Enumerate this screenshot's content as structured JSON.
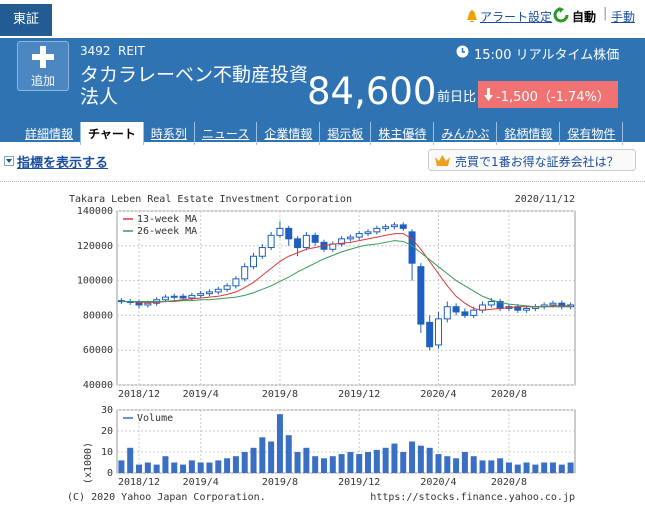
{
  "header": {
    "market": "東証",
    "alert": "アラート設定",
    "auto": "自動",
    "manual": "手動",
    "add": "追加",
    "code": "3492",
    "market_type": "REIT",
    "time": "15:00 リアルタイム株価",
    "name": "タカラレーベン不動産投資法人",
    "price": "84,600",
    "change_label": "前日比",
    "change": "-1,500（-1.74%）"
  },
  "tabs": [
    "詳細情報",
    "チャート",
    "時系列",
    "ニュース",
    "企業情報",
    "掲示板",
    "株主優待",
    "みんかぶ",
    "銘柄情報",
    "保有物件"
  ],
  "indicator_link": "指標を表示する",
  "broker_link": "売買で1番お得な証券会社は？",
  "chart_data": [
    {
      "type": "candlestick",
      "title": "Takara Leben Real Estate Investment Corporation",
      "date": "2020/11/12",
      "categories": [
        null,
        null,
        "2018/12",
        null,
        null,
        null,
        null,
        null,
        null,
        "2019/4",
        null,
        null,
        null,
        null,
        null,
        null,
        null,
        null,
        "2019/8",
        null,
        null,
        null,
        null,
        null,
        null,
        null,
        null,
        "2019/12",
        null,
        null,
        null,
        null,
        null,
        null,
        null,
        null,
        "2020/4",
        null,
        null,
        null,
        null,
        null,
        null,
        null,
        "2020/8",
        null,
        null,
        null,
        null,
        null,
        null,
        null
      ],
      "open": [
        88500,
        88000,
        87500,
        86000,
        87000,
        89000,
        90500,
        91000,
        90000,
        91500,
        92500,
        93500,
        95000,
        97000,
        101000,
        108000,
        114000,
        119000,
        126000,
        130000,
        124000,
        119000,
        126000,
        122000,
        118000,
        121000,
        124000,
        125000,
        127000,
        128000,
        130000,
        131000,
        132000,
        128000,
        108000,
        76000,
        63000,
        78000,
        85000,
        82000,
        80000,
        83000,
        86000,
        88000,
        84000,
        85000,
        83000,
        84000,
        85000,
        86000,
        87000,
        85000
      ],
      "high": [
        90000,
        89500,
        89000,
        88500,
        90500,
        92000,
        92500,
        92500,
        93000,
        94000,
        95000,
        96500,
        98500,
        102500,
        110000,
        116000,
        121000,
        128000,
        134000,
        131500,
        125500,
        128000,
        127500,
        123500,
        122500,
        125500,
        126500,
        128500,
        129500,
        131500,
        132500,
        133500,
        133500,
        129500,
        110000,
        80000,
        82000,
        88000,
        87000,
        84000,
        85000,
        88000,
        90000,
        89500,
        86500,
        86500,
        85500,
        86500,
        87500,
        88500,
        88500,
        87500
      ],
      "low": [
        86500,
        86000,
        84000,
        84500,
        85500,
        87500,
        89000,
        88500,
        88500,
        90000,
        91000,
        92000,
        93500,
        95500,
        99500,
        106500,
        112500,
        117500,
        124500,
        120000,
        114000,
        117500,
        120000,
        116500,
        116500,
        119500,
        122500,
        123500,
        125500,
        126500,
        128500,
        129500,
        128500,
        100000,
        70000,
        60000,
        61000,
        76000,
        80000,
        78500,
        78500,
        81500,
        84500,
        82500,
        82500,
        81500,
        81500,
        82500,
        83500,
        84500,
        83500,
        83500
      ],
      "close": [
        88000,
        87500,
        86000,
        87000,
        89000,
        90500,
        91000,
        90000,
        91500,
        92500,
        93500,
        95000,
        97000,
        101000,
        108000,
        114000,
        119000,
        126000,
        130000,
        124000,
        119000,
        126000,
        122000,
        118000,
        121000,
        124000,
        125000,
        127000,
        128000,
        130000,
        131000,
        132000,
        130000,
        110000,
        75000,
        62000,
        78000,
        85000,
        82000,
        80000,
        83000,
        86000,
        88000,
        84000,
        85000,
        83000,
        84000,
        85000,
        86000,
        87000,
        85000,
        86000
      ],
      "up_color": "#ffffff",
      "down_color": "#1f5fc0",
      "series": [
        {
          "name": "13-week MA",
          "color": "#d83a3a",
          "values": [
            88000,
            88000,
            87500,
            87500,
            87500,
            88000,
            88500,
            89000,
            89500,
            90000,
            90500,
            91000,
            92000,
            93500,
            96000,
            99000,
            103000,
            107000,
            111000,
            114000,
            116000,
            118000,
            119000,
            120000,
            121000,
            121500,
            122000,
            123000,
            124000,
            125000,
            126000,
            127000,
            127000,
            124000,
            118000,
            111000,
            104000,
            97000,
            91000,
            87000,
            84000,
            83000,
            83500,
            84000,
            84500,
            85000,
            85000,
            85000,
            85000,
            85500,
            85500,
            85500
          ]
        },
        {
          "name": "26-week MA",
          "color": "#3a9a5a",
          "values": [
            88000,
            88000,
            88000,
            88000,
            88000,
            88000,
            88000,
            88500,
            88500,
            89000,
            89000,
            89500,
            90000,
            90500,
            91500,
            93000,
            95000,
            97000,
            99500,
            102000,
            105000,
            107500,
            110000,
            112500,
            114500,
            116500,
            118000,
            119500,
            120500,
            121000,
            122000,
            123000,
            122500,
            120000,
            116000,
            112000,
            108000,
            104000,
            100000,
            97000,
            94000,
            91000,
            89000,
            87500,
            86500,
            86000,
            85500,
            85000,
            85000,
            85000,
            85000,
            85000
          ]
        }
      ],
      "ylim": [
        40000,
        140000
      ],
      "yticks": [
        40000,
        60000,
        80000,
        100000,
        120000,
        140000
      ],
      "grid": true
    },
    {
      "type": "bar",
      "ylabel": "(x1000)",
      "categories": [
        null,
        null,
        "2018/12",
        null,
        null,
        null,
        null,
        null,
        null,
        "2019/4",
        null,
        null,
        null,
        null,
        null,
        null,
        null,
        null,
        "2019/8",
        null,
        null,
        null,
        null,
        null,
        null,
        null,
        null,
        "2019/12",
        null,
        null,
        null,
        null,
        null,
        null,
        null,
        null,
        "2020/4",
        null,
        null,
        null,
        null,
        null,
        null,
        null,
        "2020/8",
        null,
        null,
        null,
        null,
        null,
        null,
        null
      ],
      "series": [
        {
          "name": "Volume",
          "color": "#3a6fc4",
          "values": [
            6,
            12,
            4,
            5,
            4,
            8,
            5,
            4,
            6,
            5,
            5,
            6,
            7,
            8,
            10,
            12,
            17,
            15,
            28,
            18,
            10,
            12,
            8,
            7,
            8,
            9,
            10,
            9,
            10,
            11,
            12,
            14,
            10,
            15,
            13,
            12,
            9,
            8,
            7,
            10,
            8,
            6,
            6,
            7,
            5,
            4,
            5,
            4,
            5,
            5,
            4,
            5
          ]
        }
      ],
      "ylim": [
        0,
        30
      ],
      "yticks": [
        0,
        10,
        20,
        30
      ],
      "grid": true
    }
  ],
  "footer": {
    "copyright": "(C) 2020 Yahoo Japan Corporation.",
    "url": "https://stocks.finance.yahoo.co.jp"
  }
}
